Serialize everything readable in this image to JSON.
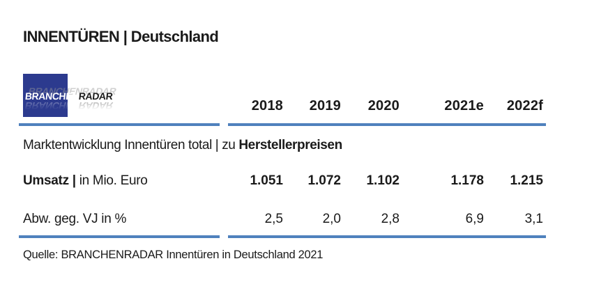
{
  "title": "INNENTÜREN | Deutschland",
  "logo": {
    "primary": "BRANCHEN",
    "secondary": "RADAR",
    "full": "BRANCHENRADAR"
  },
  "table": {
    "columns": [
      "2018",
      "2019",
      "2020",
      "2021e",
      "2022f"
    ],
    "section_title": {
      "regular": "Marktentwicklung Innentüren total | zu ",
      "bold": "Herstellerpreisen"
    },
    "rows": [
      {
        "label_bold": "Umsatz | ",
        "label_regular": "in Mio. Euro",
        "values": [
          "1.051",
          "1.072",
          "1.102",
          "1.178",
          "1.215"
        ]
      },
      {
        "label_bold": "",
        "label_regular": "Abw. geg. VJ in %",
        "values": [
          "2,5",
          "2,0",
          "2,8",
          "6,9",
          "3,1"
        ]
      }
    ]
  },
  "source": "Quelle: BRANCHENRADAR Innentüren in Deutschland 2021",
  "colors": {
    "accent_line": "#4f81bd",
    "logo_blue": "#2c3a8e",
    "text": "#1a1a1a"
  }
}
